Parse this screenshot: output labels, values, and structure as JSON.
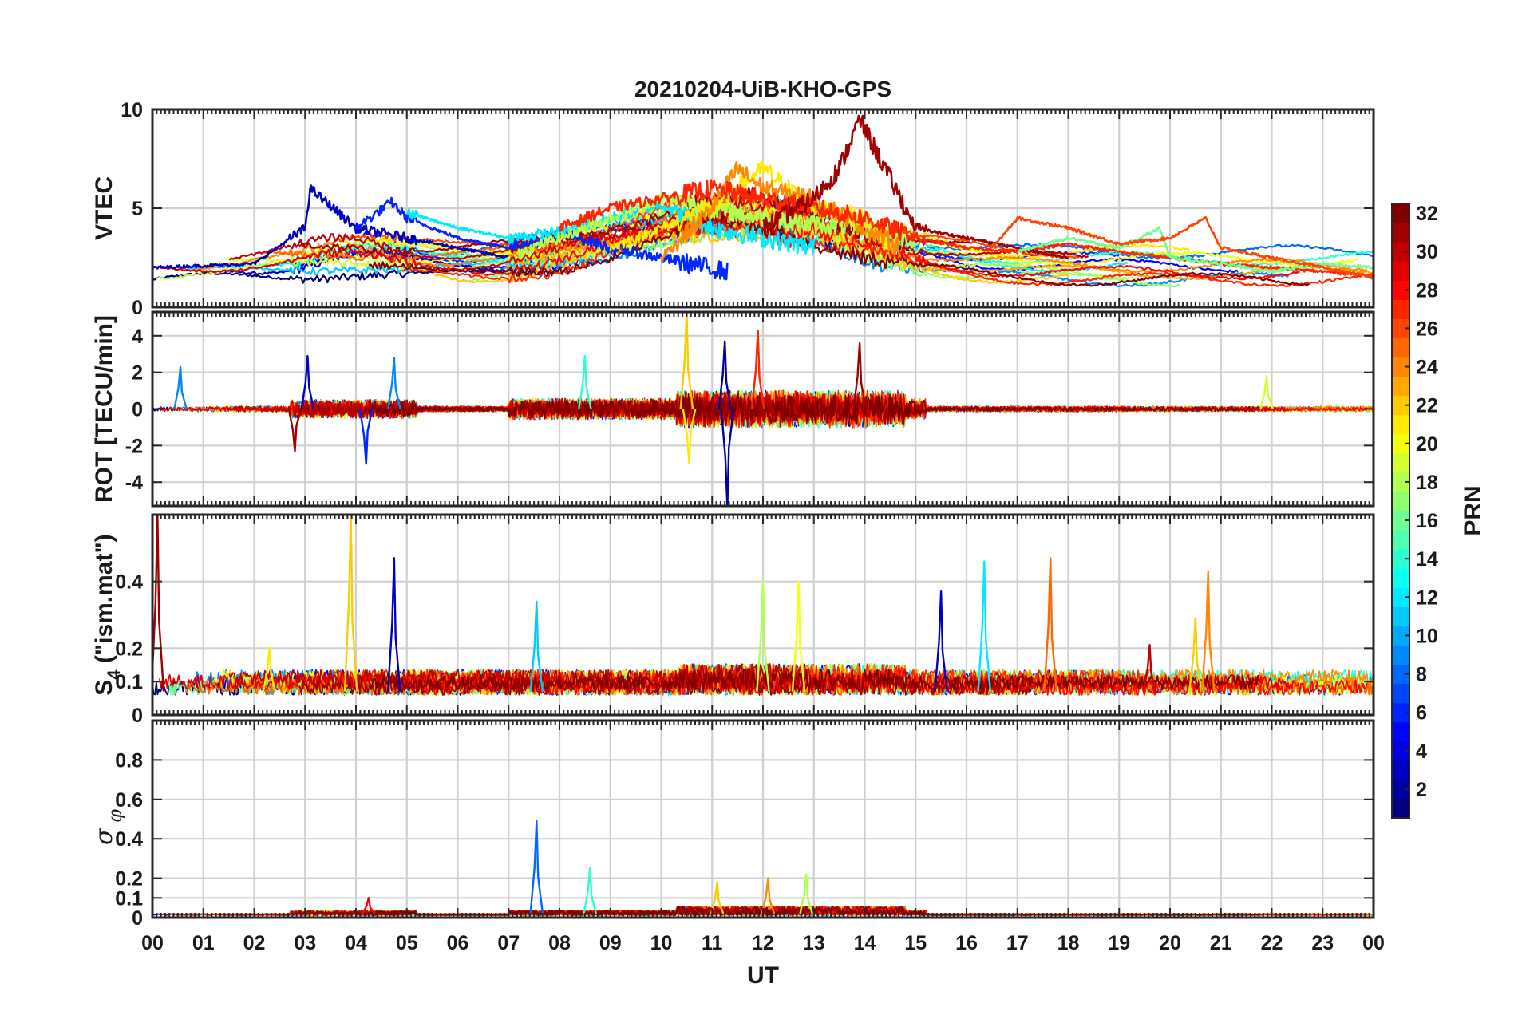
{
  "figure": {
    "title": "20210204-UiB-KHO-GPS",
    "xlabel": "UT"
  },
  "colorbar": {
    "label": "PRN",
    "range": [
      1,
      32
    ],
    "ticks": [
      "2",
      "4",
      "6",
      "8",
      "10",
      "12",
      "14",
      "16",
      "18",
      "20",
      "22",
      "24",
      "26",
      "28",
      "30",
      "32"
    ]
  },
  "chart_data": [
    {
      "type": "line",
      "panel": "VTEC",
      "ylabel": "VTEC",
      "ylim": [
        0,
        10
      ],
      "yticks": [
        "0",
        "5",
        "10"
      ],
      "xlim": [
        0,
        24
      ],
      "xticks": [
        "00",
        "01",
        "02",
        "03",
        "04",
        "05",
        "06",
        "07",
        "08",
        "09",
        "10",
        "11",
        "12",
        "13",
        "14",
        "15",
        "16",
        "17",
        "18",
        "19",
        "20",
        "21",
        "22",
        "23",
        "00"
      ],
      "grid": true,
      "notes": "Multi-satellite VTEC curves colored by PRN; baseline ~1-3 TECU rising to ~4-6 TECU during 09-14 UT; peak ~9.5 TECU at ~13.9 UT (PRN ~31).",
      "series": [
        {
          "name": "PRN 3",
          "prn": 3,
          "x": [
            0,
            1,
            2,
            3,
            3.1,
            4,
            5,
            6,
            7
          ],
          "y": [
            2.0,
            2.1,
            2.2,
            4.0,
            6.0,
            4.0,
            3.5,
            3.0,
            2.5
          ]
        },
        {
          "name": "PRN 6",
          "prn": 6,
          "x": [
            4,
            4.7,
            5,
            6,
            7,
            8,
            9,
            10,
            11.3
          ],
          "y": [
            4.0,
            5.3,
            4.5,
            3.5,
            3.0,
            3.8,
            3.0,
            2.5,
            1.8
          ]
        },
        {
          "name": "PRN 12",
          "prn": 12,
          "x": [
            5,
            6,
            7,
            8,
            9,
            10,
            11,
            12,
            13
          ],
          "y": [
            4.8,
            4.0,
            3.5,
            3.8,
            4.5,
            5.2,
            4.0,
            3.5,
            3.0
          ]
        },
        {
          "name": "PRN 18",
          "prn": 18,
          "x": [
            7.2,
            8,
            9,
            10,
            11,
            12,
            13,
            14,
            15
          ],
          "y": [
            2.8,
            3.5,
            4.5,
            5.5,
            5.0,
            4.5,
            4.2,
            4.0,
            3.2
          ]
        },
        {
          "name": "PRN 21",
          "prn": 21,
          "x": [
            9,
            10,
            11,
            12,
            13,
            14,
            14.5
          ],
          "y": [
            3.0,
            4.0,
            5.0,
            7.0,
            5.0,
            4.5,
            3.0
          ]
        },
        {
          "name": "PRN 24",
          "prn": 24,
          "x": [
            10,
            11,
            11.5,
            12,
            13,
            14,
            14.7
          ],
          "y": [
            2.5,
            5.0,
            7.0,
            6.0,
            5.5,
            4.0,
            3.0
          ]
        },
        {
          "name": "PRN 27",
          "prn": 27,
          "x": [
            8,
            9,
            10,
            11,
            12,
            13,
            14,
            15,
            16,
            17,
            18,
            19,
            20,
            21,
            22,
            23,
            24
          ],
          "y": [
            4.0,
            5.0,
            5.5,
            6.0,
            5.5,
            5.0,
            4.5,
            3.5,
            3.0,
            2.8,
            3.2,
            2.8,
            2.5,
            2.2,
            2.0,
            1.8,
            1.6
          ]
        },
        {
          "name": "PRN 31",
          "prn": 31,
          "x": [
            12,
            13,
            13.5,
            13.9,
            14.1,
            14.4,
            15,
            16,
            17,
            18
          ],
          "y": [
            4.0,
            5.5,
            7.0,
            9.5,
            8.5,
            7.0,
            4.0,
            3.5,
            3.0,
            2.5
          ]
        },
        {
          "name": "PRN 16",
          "prn": 16,
          "x": [
            17,
            18,
            19,
            19.8,
            20,
            21,
            22,
            23,
            24
          ],
          "y": [
            2.8,
            3.5,
            3.0,
            4.0,
            2.5,
            2.2,
            1.8,
            2.2,
            2.0
          ]
        },
        {
          "name": "PRN 26",
          "prn": 26,
          "x": [
            16.5,
            17,
            18,
            19,
            20,
            20.7,
            21,
            22,
            23,
            24
          ],
          "y": [
            3.0,
            4.5,
            4.0,
            3.2,
            3.5,
            4.5,
            3.0,
            2.5,
            2.0,
            1.5
          ]
        }
      ]
    },
    {
      "type": "line",
      "panel": "ROT",
      "ylabel": "ROT [TECU/min]",
      "ylim": [
        -5.3,
        5.3
      ],
      "yticks": [
        "-4",
        "-2",
        "0",
        "2",
        "4"
      ],
      "xlim": [
        0,
        24
      ],
      "grid": true,
      "notes": "Rate of TEC; fluctuates around 0, strongest activity 10-15 UT; spikes +5.3 at 10.5 UT (PRN ~22), -5.3 at 11.3 UT (PRN ~2), +3.6 at 13.9 UT (PRN ~31).",
      "spikes": [
        {
          "prn": 9,
          "x": 0.55,
          "y": 2.3
        },
        {
          "prn": 3,
          "x": 3.05,
          "y": 2.9
        },
        {
          "prn": 31,
          "x": 2.8,
          "y": -2.3
        },
        {
          "prn": 6,
          "x": 4.2,
          "y": -3.0
        },
        {
          "prn": 9,
          "x": 4.75,
          "y": 2.8
        },
        {
          "prn": 14,
          "x": 8.5,
          "y": 2.9
        },
        {
          "prn": 22,
          "x": 10.5,
          "y": 5.3
        },
        {
          "prn": 21,
          "x": 10.55,
          "y": -3.0
        },
        {
          "prn": 2,
          "x": 11.3,
          "y": -5.3
        },
        {
          "prn": 2,
          "x": 11.25,
          "y": 3.7
        },
        {
          "prn": 27,
          "x": 11.9,
          "y": 4.3
        },
        {
          "prn": 31,
          "x": 13.9,
          "y": 3.6
        },
        {
          "prn": 19,
          "x": 21.9,
          "y": 1.8
        }
      ]
    },
    {
      "type": "line",
      "panel": "S4",
      "ylabel": "S4 (\"ism.mat\")",
      "ylim": [
        0,
        0.6
      ],
      "yticks": [
        "0",
        "0.1",
        "0.2",
        "0.4"
      ],
      "ytick_values": [
        0,
        0.1,
        0.2,
        0.4
      ],
      "xlim": [
        0,
        24
      ],
      "grid": true,
      "notes": "Amplitude scintillation index; background ~0.05-0.1 with isolated spikes.",
      "spikes": [
        {
          "prn": 31,
          "x": 0.1,
          "y": 0.6
        },
        {
          "prn": 21,
          "x": 2.3,
          "y": 0.2
        },
        {
          "prn": 22,
          "x": 3.9,
          "y": 0.6
        },
        {
          "prn": 3,
          "x": 4.75,
          "y": 0.47
        },
        {
          "prn": 11,
          "x": 7.55,
          "y": 0.34
        },
        {
          "prn": 18,
          "x": 12.0,
          "y": 0.4
        },
        {
          "prn": 20,
          "x": 12.7,
          "y": 0.4
        },
        {
          "prn": 3,
          "x": 15.5,
          "y": 0.37
        },
        {
          "prn": 12,
          "x": 16.35,
          "y": 0.46
        },
        {
          "prn": 25,
          "x": 17.65,
          "y": 0.47
        },
        {
          "prn": 22,
          "x": 20.5,
          "y": 0.29
        },
        {
          "prn": 24,
          "x": 20.75,
          "y": 0.43
        },
        {
          "prn": 30,
          "x": 19.6,
          "y": 0.21
        }
      ]
    },
    {
      "type": "line",
      "panel": "sigma_phi",
      "ylabel": "σ φ",
      "ylim": [
        0,
        1
      ],
      "yticks": [
        "0",
        "0.1",
        "0.2",
        "0.4",
        "0.6",
        "0.8"
      ],
      "ytick_values": [
        0,
        0.1,
        0.2,
        0.4,
        0.6,
        0.8
      ],
      "xlim": [
        0,
        24
      ],
      "grid": true,
      "notes": "Phase scintillation index; background ~0.01-0.05 with isolated spikes.",
      "spikes": [
        {
          "prn": 8,
          "x": 7.55,
          "y": 0.49
        },
        {
          "prn": 14,
          "x": 8.6,
          "y": 0.25
        },
        {
          "prn": 18,
          "x": 12.85,
          "y": 0.22
        },
        {
          "prn": 24,
          "x": 12.1,
          "y": 0.2
        },
        {
          "prn": 28,
          "x": 4.25,
          "y": 0.1
        },
        {
          "prn": 22,
          "x": 11.1,
          "y": 0.18
        }
      ]
    }
  ]
}
